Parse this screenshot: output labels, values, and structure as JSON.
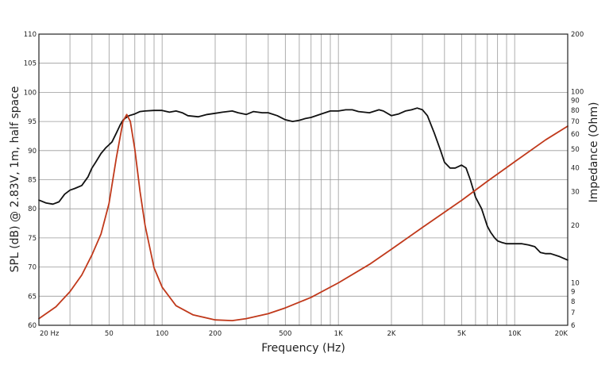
{
  "chart_data": {
    "type": "line",
    "xlabel": "Frequency (Hz)",
    "ylabel": "SPL (dB) @ 2.83V, 1m, half space",
    "y2label": "Impedance (Ohm)",
    "x_scale": "log",
    "xlim": [
      20,
      20000
    ],
    "ylim": [
      60,
      110
    ],
    "y2_scale": "log",
    "y2lim": [
      6,
      200
    ],
    "grid": true,
    "x_ticks": [
      {
        "v": 20,
        "t": "20  Hz"
      },
      {
        "v": 50,
        "t": "50"
      },
      {
        "v": 100,
        "t": "100"
      },
      {
        "v": 200,
        "t": "200"
      },
      {
        "v": 500,
        "t": "500"
      },
      {
        "v": 1000,
        "t": "1K"
      },
      {
        "v": 2000,
        "t": "2K"
      },
      {
        "v": 5000,
        "t": "5K"
      },
      {
        "v": 10000,
        "t": "10K"
      },
      {
        "v": 20000,
        "t": "20K"
      }
    ],
    "y_ticks": [
      60,
      65,
      70,
      75,
      80,
      85,
      90,
      95,
      100,
      105,
      110
    ],
    "y2_ticks": [
      6,
      7,
      8,
      9,
      10,
      20,
      30,
      40,
      50,
      60,
      70,
      80,
      90,
      100,
      200
    ],
    "series": [
      {
        "axis": "left",
        "color": "#111111",
        "x": [
          20,
          22,
          24,
          26,
          28,
          30,
          32,
          35,
          38,
          40,
          42,
          45,
          48,
          50,
          52,
          55,
          58,
          60,
          62,
          65,
          70,
          75,
          80,
          90,
          100,
          110,
          120,
          130,
          140,
          160,
          180,
          200,
          220,
          250,
          270,
          300,
          330,
          370,
          400,
          450,
          500,
          550,
          600,
          650,
          700,
          800,
          900,
          1000,
          1100,
          1200,
          1300,
          1500,
          1700,
          1800,
          2000,
          2200,
          2400,
          2600,
          2800,
          3000,
          3200,
          3500,
          3800,
          4000,
          4300,
          4600,
          5000,
          5300,
          5600,
          6000,
          6500,
          7000,
          7300,
          7700,
          8000,
          8500,
          9000,
          10000,
          11000,
          12000,
          13000,
          14000,
          15000,
          16000,
          18000,
          20000
        ],
        "y": [
          81.5,
          81.0,
          80.8,
          81.2,
          82.5,
          83.2,
          83.5,
          84.0,
          85.5,
          87.0,
          88.0,
          89.5,
          90.5,
          91.0,
          91.5,
          93.0,
          94.5,
          95.2,
          95.6,
          96.0,
          96.3,
          96.7,
          96.8,
          96.9,
          96.9,
          96.6,
          96.8,
          96.5,
          96.0,
          95.8,
          96.2,
          96.4,
          96.6,
          96.8,
          96.5,
          96.2,
          96.7,
          96.5,
          96.5,
          96.0,
          95.3,
          95.0,
          95.2,
          95.5,
          95.7,
          96.3,
          96.8,
          96.8,
          97.0,
          97.0,
          96.7,
          96.5,
          97.0,
          96.8,
          96.0,
          96.3,
          96.8,
          97.0,
          97.3,
          97.0,
          96.0,
          93.0,
          90.0,
          88.0,
          87.0,
          87.0,
          87.5,
          87.0,
          85.0,
          82.0,
          80.0,
          77.0,
          76.0,
          75.0,
          74.5,
          74.2,
          74.0,
          74.0,
          74.0,
          73.8,
          73.5,
          72.5,
          72.3,
          72.3,
          71.8,
          71.2
        ]
      },
      {
        "axis": "right",
        "color": "#c0391b",
        "x": [
          20,
          25,
          30,
          35,
          40,
          45,
          50,
          55,
          60,
          63,
          66,
          70,
          75,
          80,
          90,
          100,
          120,
          150,
          200,
          250,
          300,
          400,
          500,
          700,
          1000,
          1500,
          2000,
          3000,
          5000,
          7000,
          10000,
          15000,
          20000
        ],
        "y": [
          6.5,
          7.5,
          9.0,
          11.0,
          14.0,
          18.0,
          26.0,
          45.0,
          70.0,
          76.0,
          70.0,
          50.0,
          30.0,
          20.0,
          12.0,
          9.5,
          7.6,
          6.8,
          6.4,
          6.35,
          6.5,
          6.9,
          7.4,
          8.4,
          10.0,
          12.5,
          15.0,
          19.5,
          27.0,
          34.0,
          43.0,
          56.0,
          66.0
        ]
      }
    ]
  }
}
